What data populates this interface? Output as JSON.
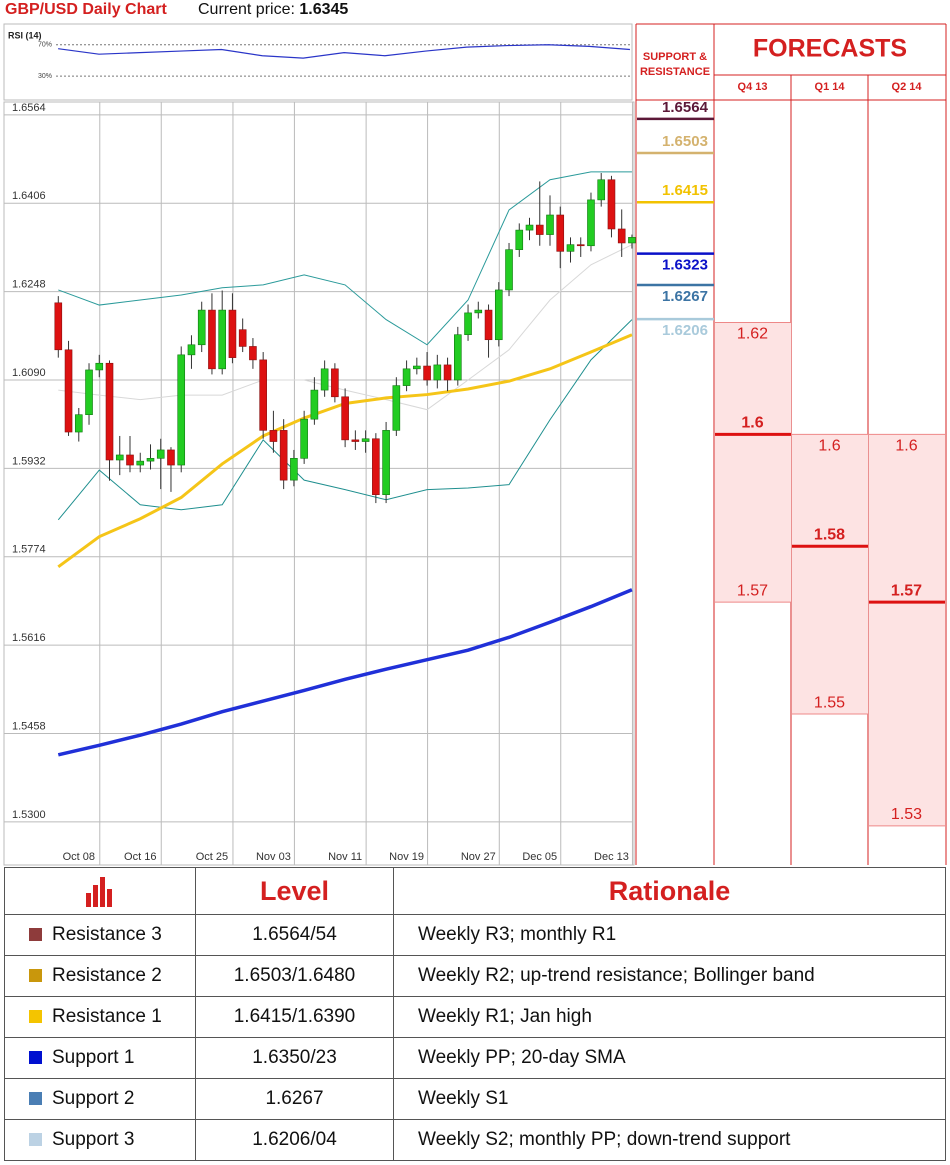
{
  "header": {
    "title": "GBP/USD Daily Chart",
    "price_label": "Current price:",
    "price": 1.6345
  },
  "chart_data": [
    {
      "type": "line",
      "title": "RSI (14)",
      "color": "#2a35c8",
      "x": [
        0,
        4,
        8,
        12,
        16,
        20,
        24,
        28,
        32,
        36,
        40,
        44,
        48,
        52,
        56
      ],
      "values": [
        65,
        58,
        60,
        62,
        64,
        56,
        53,
        60,
        56,
        62,
        67,
        69,
        70,
        68,
        64
      ],
      "xlim": [
        -5.3,
        56.2
      ],
      "ylim": [
        2,
        94
      ],
      "yticks": [
        {
          "value": 30,
          "label": "30%"
        },
        {
          "value": 70,
          "label": "70%"
        }
      ]
    },
    {
      "type": "candlestick",
      "up_color": "#22cc22",
      "down_color": "#dd1111",
      "xlim": [
        -5.3,
        56.2
      ],
      "ylim": [
        1.5223,
        1.6587
      ],
      "xticks": [
        {
          "value": 2,
          "label": "Oct 08"
        },
        {
          "value": 8,
          "label": "Oct 16"
        },
        {
          "value": 15,
          "label": "Oct 25"
        },
        {
          "value": 21,
          "label": "Nov 03"
        },
        {
          "value": 28,
          "label": "Nov 11"
        },
        {
          "value": 34,
          "label": "Nov 19"
        },
        {
          "value": 41,
          "label": "Nov 27"
        },
        {
          "value": 47,
          "label": "Dec 05"
        },
        {
          "value": 54,
          "label": "Dec 13"
        }
      ],
      "yticks": [
        {
          "value": 1.53,
          "label": "1.5300"
        },
        1.5458,
        1.5616,
        1.5774,
        1.5932,
        {
          "value": 1.609,
          "label": "1.6090"
        },
        1.6248,
        1.6406,
        1.6564
      ],
      "grid": true,
      "ohlc": [
        [
          1.6228,
          1.624,
          1.613,
          1.6144
        ],
        [
          1.6144,
          1.616,
          1.599,
          1.5997
        ],
        [
          1.5997,
          1.604,
          1.598,
          1.6028
        ],
        [
          1.6028,
          1.612,
          1.601,
          1.6108
        ],
        [
          1.6108,
          1.6135,
          1.6095,
          1.612
        ],
        [
          1.612,
          1.6125,
          1.591,
          1.5947
        ],
        [
          1.5947,
          1.599,
          1.592,
          1.5956
        ],
        [
          1.5956,
          1.599,
          1.5925,
          1.5938
        ],
        [
          1.5938,
          1.596,
          1.5925,
          1.5945
        ],
        [
          1.5945,
          1.5975,
          1.593,
          1.595
        ],
        [
          1.595,
          1.5985,
          1.5895,
          1.5965
        ],
        [
          1.5965,
          1.597,
          1.589,
          1.5938
        ],
        [
          1.5938,
          1.615,
          1.5925,
          1.6135
        ],
        [
          1.6135,
          1.617,
          1.611,
          1.6153
        ],
        [
          1.6153,
          1.623,
          1.614,
          1.6215
        ],
        [
          1.6215,
          1.6245,
          1.61,
          1.611
        ],
        [
          1.611,
          1.625,
          1.61,
          1.6215
        ],
        [
          1.6215,
          1.6245,
          1.612,
          1.613
        ],
        [
          1.618,
          1.62,
          1.614,
          1.615
        ],
        [
          1.615,
          1.6165,
          1.611,
          1.6126
        ],
        [
          1.6126,
          1.614,
          1.5985,
          1.6
        ],
        [
          1.6,
          1.6035,
          1.596,
          1.598
        ],
        [
          1.6,
          1.602,
          1.5895,
          1.5911
        ],
        [
          1.5911,
          1.5965,
          1.59,
          1.595
        ],
        [
          1.595,
          1.6035,
          1.594,
          1.602
        ],
        [
          1.602,
          1.6095,
          1.601,
          1.6072
        ],
        [
          1.6072,
          1.6125,
          1.606,
          1.611
        ],
        [
          1.611,
          1.612,
          1.605,
          1.606
        ],
        [
          1.606,
          1.6075,
          1.597,
          1.5983
        ],
        [
          1.5983,
          1.6,
          1.5965,
          1.598
        ],
        [
          1.598,
          1.6,
          1.596,
          1.5985
        ],
        [
          1.5985,
          1.5995,
          1.587,
          1.5885
        ],
        [
          1.5885,
          1.6015,
          1.587,
          1.6
        ],
        [
          1.6,
          1.6095,
          1.599,
          1.608
        ],
        [
          1.608,
          1.6125,
          1.607,
          1.611
        ],
        [
          1.611,
          1.613,
          1.61,
          1.6115
        ],
        [
          1.6115,
          1.614,
          1.608,
          1.609
        ],
        [
          1.609,
          1.6135,
          1.6075,
          1.6117
        ],
        [
          1.6117,
          1.613,
          1.607,
          1.609
        ],
        [
          1.609,
          1.6185,
          1.608,
          1.6171
        ],
        [
          1.6171,
          1.6225,
          1.616,
          1.621
        ],
        [
          1.621,
          1.623,
          1.62,
          1.6215
        ],
        [
          1.6215,
          1.6225,
          1.613,
          1.6162
        ],
        [
          1.6162,
          1.6265,
          1.615,
          1.6251
        ],
        [
          1.6251,
          1.6335,
          1.624,
          1.6323
        ],
        [
          1.6323,
          1.637,
          1.631,
          1.6358
        ],
        [
          1.6358,
          1.638,
          1.634,
          1.6367
        ],
        [
          1.6367,
          1.6445,
          1.633,
          1.635
        ],
        [
          1.635,
          1.642,
          1.633,
          1.6385
        ],
        [
          1.6385,
          1.64,
          1.629,
          1.632
        ],
        [
          1.632,
          1.6345,
          1.63,
          1.6332
        ],
        [
          1.6332,
          1.6345,
          1.631,
          1.633
        ],
        [
          1.633,
          1.6425,
          1.632,
          1.6412
        ],
        [
          1.6412,
          1.646,
          1.64,
          1.6448
        ],
        [
          1.6448,
          1.6455,
          1.6345,
          1.636
        ],
        [
          1.636,
          1.6395,
          1.631,
          1.6335
        ],
        [
          1.6335,
          1.635,
          1.6325,
          1.6345
        ]
      ],
      "line_x": [
        0,
        4,
        8,
        12,
        16,
        20,
        24,
        28,
        32,
        36,
        40,
        44,
        48,
        52,
        56
      ],
      "lines": [
        {
          "color": "#2a9a9a",
          "width": 1,
          "values": [
            1.6251,
            1.6224,
            1.6233,
            1.6242,
            1.6255,
            1.626,
            1.6278,
            1.626,
            1.6198,
            1.6153,
            1.6233,
            1.6394,
            1.6448,
            1.6462,
            1.6462
          ]
        },
        {
          "color": "#1f8f8f",
          "width": 1,
          "values": [
            1.584,
            1.5929,
            1.5867,
            1.5858,
            1.5867,
            1.5983,
            1.5911,
            1.5894,
            1.5876,
            1.5894,
            1.5897,
            1.5903,
            1.6019,
            1.6126,
            1.6198
          ]
        },
        {
          "color": "#d8d8d8",
          "width": 1,
          "values": [
            1.6072,
            1.6063,
            1.6055,
            1.6063,
            1.6063,
            1.609,
            1.609,
            1.6072,
            1.6055,
            1.6037,
            1.609,
            1.6144,
            1.6233,
            1.6296,
            1.6332
          ]
        },
        {
          "color": "#f5c518",
          "width": 3,
          "values": [
            1.5756,
            1.581,
            1.5842,
            1.588,
            1.594,
            1.599,
            1.6022,
            1.6048,
            1.6058,
            1.6064,
            1.6074,
            1.6088,
            1.611,
            1.614,
            1.6171
          ]
        },
        {
          "color": "#2030d8",
          "width": 3.5,
          "values": [
            1.542,
            1.5437,
            1.5455,
            1.5475,
            1.5497,
            1.5516,
            1.5535,
            1.5555,
            1.5573,
            1.559,
            1.5607,
            1.563,
            1.5657,
            1.5685,
            1.5715
          ]
        }
      ]
    }
  ],
  "support_resistance": {
    "title": [
      "SUPPORT &",
      "RESISTANCE"
    ],
    "levels": [
      {
        "value": 1.6564,
        "color": "#5c1838"
      },
      {
        "value": 1.6503,
        "color": "#d4b26e"
      },
      {
        "value": 1.6415,
        "color": "#f2c200"
      },
      {
        "value": 1.6323,
        "color": "#0a10c8"
      },
      {
        "value": 1.6267,
        "color": "#3c74a4"
      },
      {
        "value": 1.6206,
        "color": "#a9cadb"
      }
    ]
  },
  "forecasts": {
    "title": "FORECASTS",
    "quarters": [
      {
        "label": "Q4 13",
        "high": 1.62,
        "mid": 1.6,
        "low": 1.57
      },
      {
        "label": "Q1 14",
        "high": 1.6,
        "mid": 1.58,
        "low": 1.55
      },
      {
        "label": "Q2 14",
        "high": 1.6,
        "mid": 1.57,
        "low": 1.53
      }
    ]
  },
  "table": {
    "header": [
      "Level",
      "Rationale"
    ],
    "rows": [
      {
        "name": "Resistance 3",
        "color": "#8e3b3b",
        "level": "1.6564/54",
        "rationale": "Weekly R3; monthly R1"
      },
      {
        "name": "Resistance 2",
        "color": "#c9970c",
        "level": "1.6503/1.6480",
        "rationale": "Weekly R2; up-trend resistance; Bollinger band"
      },
      {
        "name": "Resistance 1",
        "color": "#f4c400",
        "level": "1.6415/1.6390",
        "rationale": "Weekly R1; Jan high"
      },
      {
        "name": "Support 1",
        "color": "#0010d0",
        "level": "1.6350/23",
        "rationale": "Weekly PP; 20-day SMA"
      },
      {
        "name": "Support 2",
        "color": "#4a7eb4",
        "level": "1.6267",
        "rationale": "Weekly S1"
      },
      {
        "name": "Support 3",
        "color": "#bcd2e4",
        "level": "1.6206/04",
        "rationale": "Weekly S2; monthly PP; down-trend support"
      }
    ]
  }
}
